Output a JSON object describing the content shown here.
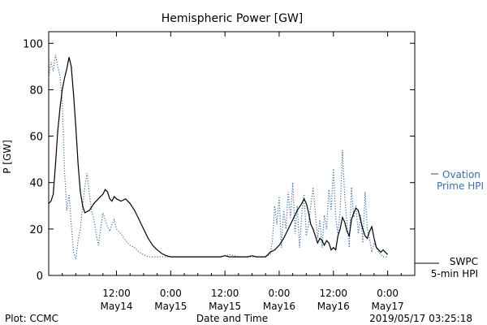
{
  "chart_data": {
    "type": "line",
    "title": "Hemispheric Power [GW]",
    "xlabel": "Date and Time",
    "ylabel": "P [GW]",
    "ylim": [
      0,
      105
    ],
    "yticks": [
      0,
      20,
      40,
      60,
      80,
      100
    ],
    "xlim": [
      0,
      81
    ],
    "x_unit": "hours from 2019-05-13 21:00 UT",
    "xticks": [
      {
        "x": 15,
        "line1": "12:00",
        "line2": "May14"
      },
      {
        "x": 27,
        "line1": "0:00",
        "line2": "May15"
      },
      {
        "x": 39,
        "line1": "12:00",
        "line2": "May15"
      },
      {
        "x": 51,
        "line1": "0:00",
        "line2": "May16"
      },
      {
        "x": 63,
        "line1": "12:00",
        "line2": "May16"
      },
      {
        "x": 75,
        "line1": "0:00",
        "line2": "May17"
      }
    ],
    "grid": false,
    "legend_position": "right",
    "series": [
      {
        "name": "SWPC 5-min HPI",
        "label_line1": "SWPC",
        "label_line2": "5-min HPI",
        "color": "#000000",
        "style": "solid",
        "points": [
          [
            0,
            31
          ],
          [
            0.5,
            32
          ],
          [
            1,
            35
          ],
          [
            1.5,
            48
          ],
          [
            2,
            62
          ],
          [
            2.5,
            72
          ],
          [
            3,
            80
          ],
          [
            3.5,
            85
          ],
          [
            4,
            89
          ],
          [
            4.5,
            94
          ],
          [
            5,
            90
          ],
          [
            5.5,
            78
          ],
          [
            6,
            64
          ],
          [
            6.5,
            48
          ],
          [
            7,
            36
          ],
          [
            7.5,
            30
          ],
          [
            8,
            27
          ],
          [
            9,
            28
          ],
          [
            10,
            31
          ],
          [
            11,
            33
          ],
          [
            12,
            35
          ],
          [
            12.5,
            37
          ],
          [
            13,
            36
          ],
          [
            13.5,
            33
          ],
          [
            14,
            32
          ],
          [
            14.5,
            34
          ],
          [
            15,
            33
          ],
          [
            16,
            32
          ],
          [
            17,
            33
          ],
          [
            18,
            31
          ],
          [
            19,
            28
          ],
          [
            20,
            24
          ],
          [
            21,
            20
          ],
          [
            22,
            16
          ],
          [
            23,
            13
          ],
          [
            24,
            11
          ],
          [
            25,
            9.5
          ],
          [
            26,
            8.5
          ],
          [
            27,
            8
          ],
          [
            28,
            8
          ],
          [
            30,
            8
          ],
          [
            33,
            8
          ],
          [
            36,
            8
          ],
          [
            38,
            8
          ],
          [
            39,
            8.5
          ],
          [
            40,
            8
          ],
          [
            42,
            8
          ],
          [
            44,
            8
          ],
          [
            45,
            8.5
          ],
          [
            46,
            8
          ],
          [
            47,
            8
          ],
          [
            48,
            8
          ],
          [
            48.5,
            9
          ],
          [
            49,
            10
          ],
          [
            50,
            11
          ],
          [
            51,
            13
          ],
          [
            52,
            16
          ],
          [
            53,
            20
          ],
          [
            54,
            24
          ],
          [
            55,
            28
          ],
          [
            56,
            31
          ],
          [
            56.5,
            33
          ],
          [
            57,
            31
          ],
          [
            57.5,
            27
          ],
          [
            58,
            22
          ],
          [
            58.5,
            20
          ],
          [
            59,
            17
          ],
          [
            59.5,
            14
          ],
          [
            60,
            16
          ],
          [
            60.5,
            15
          ],
          [
            61,
            13
          ],
          [
            61.5,
            15
          ],
          [
            62,
            14
          ],
          [
            62.5,
            11
          ],
          [
            63,
            12
          ],
          [
            63.5,
            11
          ],
          [
            64,
            17
          ],
          [
            64.5,
            20
          ],
          [
            65,
            25
          ],
          [
            65.5,
            23
          ],
          [
            66,
            19
          ],
          [
            66.5,
            17
          ],
          [
            67,
            24
          ],
          [
            67.5,
            27
          ],
          [
            68,
            29
          ],
          [
            68.5,
            28
          ],
          [
            69,
            24
          ],
          [
            69.5,
            20
          ],
          [
            70,
            17
          ],
          [
            70.5,
            16
          ],
          [
            71,
            19
          ],
          [
            71.5,
            21
          ],
          [
            72,
            16
          ],
          [
            72.5,
            12
          ],
          [
            73,
            11
          ],
          [
            73.5,
            10
          ],
          [
            74,
            11
          ],
          [
            74.5,
            10
          ],
          [
            75,
            9
          ]
        ]
      },
      {
        "name": "Ovation Prime HPI",
        "label_line1": "Ovation",
        "label_line2": "Prime HPI",
        "color": "#3d6fb0",
        "style": "dotted",
        "points": [
          [
            0,
            85
          ],
          [
            0.5,
            92
          ],
          [
            1,
            88
          ],
          [
            1.5,
            95
          ],
          [
            2,
            90
          ],
          [
            2.5,
            86
          ],
          [
            3,
            75
          ],
          [
            3.5,
            45
          ],
          [
            4,
            28
          ],
          [
            4.5,
            35
          ],
          [
            5,
            22
          ],
          [
            5.5,
            10
          ],
          [
            6,
            7
          ],
          [
            6.5,
            15
          ],
          [
            7,
            20
          ],
          [
            7.5,
            30
          ],
          [
            8,
            38
          ],
          [
            8.5,
            44
          ],
          [
            9,
            35
          ],
          [
            9.5,
            28
          ],
          [
            10,
            24
          ],
          [
            10.5,
            18
          ],
          [
            11,
            13
          ],
          [
            11.5,
            20
          ],
          [
            12,
            27
          ],
          [
            12.5,
            24
          ],
          [
            13,
            21
          ],
          [
            13.5,
            19
          ],
          [
            14,
            22
          ],
          [
            14.5,
            24
          ],
          [
            15,
            20
          ],
          [
            16,
            18
          ],
          [
            17,
            15
          ],
          [
            18,
            13
          ],
          [
            19,
            12
          ],
          [
            20,
            10
          ],
          [
            21,
            9
          ],
          [
            22,
            8
          ],
          [
            23,
            8
          ],
          [
            25,
            8
          ],
          [
            27,
            8
          ],
          [
            30,
            8
          ],
          [
            33,
            8
          ],
          [
            36,
            8
          ],
          [
            38,
            8
          ],
          [
            40,
            9
          ],
          [
            42,
            8
          ],
          [
            44,
            8
          ],
          [
            46,
            8
          ],
          [
            48,
            8
          ],
          [
            49,
            9
          ],
          [
            49.5,
            15
          ],
          [
            50,
            30
          ],
          [
            50.5,
            22
          ],
          [
            51,
            34
          ],
          [
            51.5,
            12
          ],
          [
            52,
            28
          ],
          [
            52.5,
            20
          ],
          [
            53,
            36
          ],
          [
            53.5,
            25
          ],
          [
            54,
            40
          ],
          [
            54.5,
            18
          ],
          [
            55,
            30
          ],
          [
            55.5,
            12
          ],
          [
            56,
            26
          ],
          [
            56.5,
            35
          ],
          [
            57,
            17
          ],
          [
            57.5,
            22
          ],
          [
            58,
            30
          ],
          [
            58.5,
            38
          ],
          [
            59,
            27
          ],
          [
            59.5,
            16
          ],
          [
            60,
            24
          ],
          [
            60.5,
            12
          ],
          [
            61,
            26
          ],
          [
            61.5,
            20
          ],
          [
            62,
            37
          ],
          [
            62.5,
            28
          ],
          [
            63,
            46
          ],
          [
            63.5,
            25
          ],
          [
            64,
            18
          ],
          [
            64.5,
            28
          ],
          [
            65,
            54
          ],
          [
            65.5,
            34
          ],
          [
            66,
            22
          ],
          [
            66.5,
            12
          ],
          [
            67,
            38
          ],
          [
            67.5,
            25
          ],
          [
            68,
            30
          ],
          [
            68.5,
            18
          ],
          [
            69,
            26
          ],
          [
            69.5,
            14
          ],
          [
            70,
            36
          ],
          [
            70.5,
            20
          ],
          [
            71,
            16
          ],
          [
            71.5,
            10
          ],
          [
            72,
            14
          ],
          [
            73,
            10
          ],
          [
            74,
            8
          ],
          [
            75,
            8
          ]
        ]
      }
    ]
  },
  "footer": {
    "left": "Plot: CCMC",
    "center": "Date and Time",
    "right": "2019/05/17 03:25:18"
  }
}
